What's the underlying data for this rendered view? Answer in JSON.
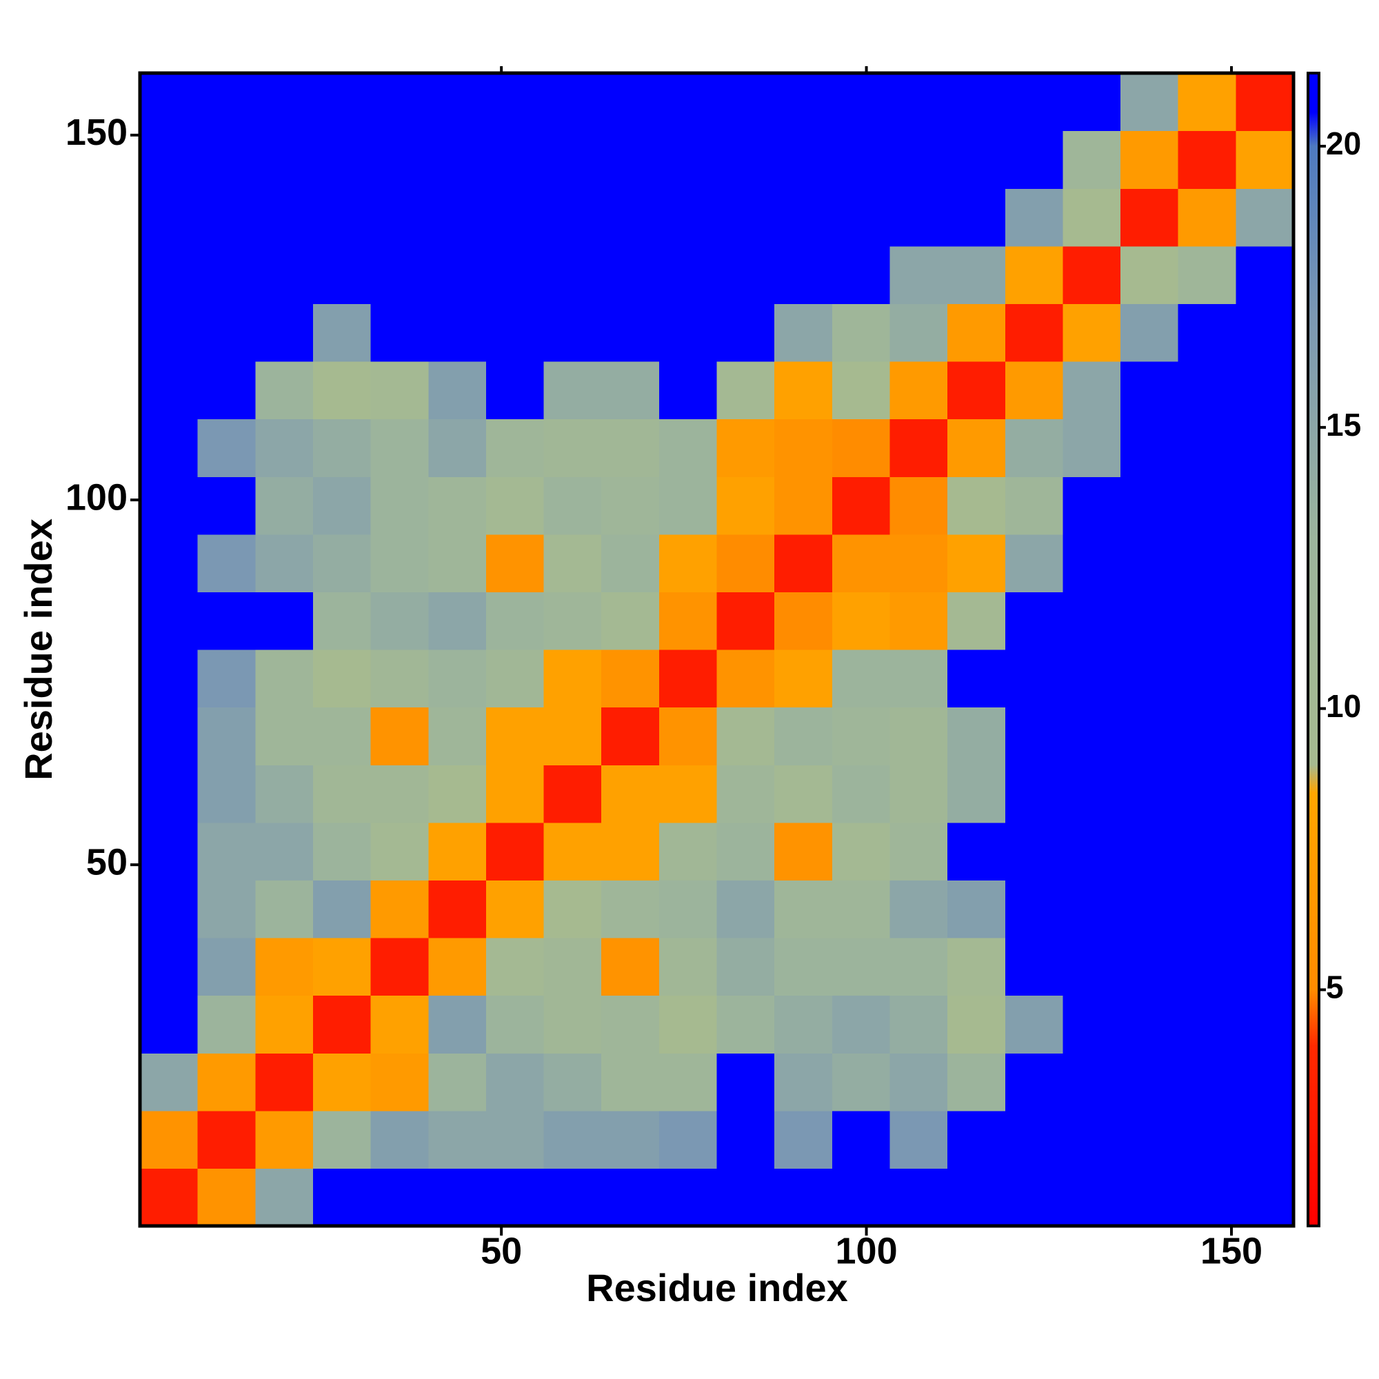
{
  "chart_data": {
    "type": "heatmap",
    "xlabel": "Residue index",
    "ylabel": "Residue index",
    "xlim": [
      0.5,
      158.5
    ],
    "ylim": [
      0.5,
      158.5
    ],
    "xticks": [
      50,
      100,
      150
    ],
    "yticks": [
      50,
      100,
      150
    ],
    "zlim": [
      0.8,
      21.3
    ],
    "zticks": [
      5,
      10,
      15,
      20
    ],
    "colorscale": [
      [
        0.8,
        "#ff0000"
      ],
      [
        4,
        "#ff2a00"
      ],
      [
        5,
        "#ff8c00"
      ],
      [
        8.5,
        "#ffa500"
      ],
      [
        9,
        "#a6ba90"
      ],
      [
        13,
        "#9cb49c"
      ],
      [
        17,
        "#7b98b3"
      ],
      [
        20,
        "#4e7ac0"
      ],
      [
        20.6,
        "#0000ff"
      ]
    ],
    "z": [
      [
        3,
        6,
        15,
        21,
        21,
        21,
        21,
        21,
        21,
        21,
        21,
        21,
        21,
        21,
        21,
        21,
        21,
        21,
        21,
        21
      ],
      [
        6,
        3,
        7,
        13,
        16,
        15,
        15,
        16,
        16,
        17,
        21,
        17,
        21,
        17,
        21,
        21,
        21,
        21,
        21,
        21
      ],
      [
        15,
        7,
        3,
        8,
        7,
        13,
        15,
        14,
        12,
        12,
        21,
        15,
        14,
        15,
        13,
        21,
        21,
        21,
        21,
        21
      ],
      [
        21,
        13,
        8,
        3,
        8,
        16,
        13,
        11,
        12,
        9,
        13,
        14,
        15,
        14,
        9,
        16,
        21,
        21,
        21,
        21
      ],
      [
        21,
        16,
        7,
        8,
        3,
        7,
        10,
        11,
        6,
        11,
        14,
        13,
        13,
        13,
        10,
        21,
        21,
        21,
        21,
        21
      ],
      [
        21,
        15,
        13,
        16,
        7,
        3,
        8,
        9,
        12,
        13,
        15,
        12,
        12,
        15,
        16,
        21,
        21,
        21,
        21,
        21
      ],
      [
        21,
        15,
        15,
        13,
        10,
        8,
        3,
        8,
        8,
        11,
        13,
        6,
        10,
        12,
        21,
        21,
        21,
        21,
        21,
        21
      ],
      [
        21,
        16,
        14,
        11,
        11,
        9,
        8,
        3,
        8,
        8,
        12,
        10,
        13,
        11,
        14,
        21,
        21,
        21,
        21,
        21
      ],
      [
        21,
        16,
        12,
        12,
        6,
        12,
        8,
        8,
        3,
        6,
        10,
        13,
        12,
        11,
        14,
        21,
        21,
        21,
        21,
        21
      ],
      [
        21,
        17,
        12,
        9,
        11,
        13,
        11,
        8,
        6,
        3,
        6,
        8,
        13,
        13,
        21,
        21,
        21,
        21,
        21,
        21
      ],
      [
        21,
        21,
        21,
        13,
        14,
        15,
        13,
        12,
        10,
        6,
        3,
        5,
        8,
        7,
        10,
        21,
        21,
        21,
        21,
        21
      ],
      [
        21,
        17,
        15,
        14,
        13,
        12,
        6,
        10,
        13,
        8,
        5,
        3,
        6,
        6,
        8,
        15,
        21,
        21,
        21,
        21
      ],
      [
        21,
        21,
        14,
        15,
        13,
        12,
        10,
        13,
        12,
        13,
        8,
        6,
        3,
        5,
        9,
        12,
        21,
        21,
        21,
        21
      ],
      [
        21,
        17,
        15,
        14,
        13,
        15,
        12,
        11,
        11,
        13,
        7,
        6,
        5,
        3,
        7,
        14,
        15,
        21,
        21,
        21
      ],
      [
        21,
        21,
        13,
        9,
        10,
        16,
        21,
        14,
        14,
        21,
        10,
        8,
        9,
        7,
        3,
        7,
        15,
        21,
        21,
        21
      ],
      [
        21,
        21,
        21,
        16,
        21,
        21,
        21,
        21,
        21,
        21,
        21,
        15,
        12,
        14,
        7,
        3,
        8,
        16,
        21,
        21
      ],
      [
        21,
        21,
        21,
        21,
        21,
        21,
        21,
        21,
        21,
        21,
        21,
        21,
        21,
        15,
        15,
        8,
        3,
        9,
        12,
        21
      ],
      [
        21,
        21,
        21,
        21,
        21,
        21,
        21,
        21,
        21,
        21,
        21,
        21,
        21,
        21,
        21,
        16,
        9,
        3,
        7,
        15
      ],
      [
        21,
        21,
        21,
        21,
        21,
        21,
        21,
        21,
        21,
        21,
        21,
        21,
        21,
        21,
        21,
        21,
        12,
        7,
        3,
        8
      ],
      [
        21,
        21,
        21,
        21,
        21,
        21,
        21,
        21,
        21,
        21,
        21,
        21,
        21,
        21,
        21,
        21,
        21,
        15,
        8,
        3
      ]
    ]
  }
}
